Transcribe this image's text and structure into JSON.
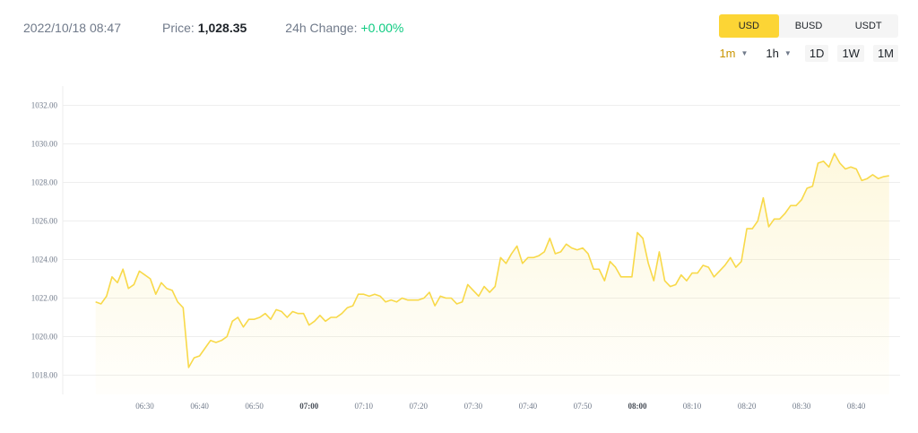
{
  "header": {
    "datetime": "2022/10/18 08:47",
    "price_label": "Price:",
    "price_value": "1,028.35",
    "change_label": "24h Change:",
    "change_value": "+0.00%"
  },
  "currency_options": [
    {
      "label": "USD",
      "active": true
    },
    {
      "label": "BUSD",
      "active": false
    },
    {
      "label": "USDT",
      "active": false
    }
  ],
  "interval_options": [
    {
      "label": "1m",
      "dropdown": true,
      "selected": true
    },
    {
      "label": "1h",
      "dropdown": true,
      "selected": false
    },
    {
      "label": "1D",
      "dropdown": false,
      "selected": false
    },
    {
      "label": "1W",
      "dropdown": false,
      "selected": false
    },
    {
      "label": "1M",
      "dropdown": false,
      "selected": false
    }
  ],
  "colors": {
    "accent": "#fcd535",
    "line": "#f8d949",
    "positive": "#0ecb81",
    "grid": "#eeeeee"
  },
  "chart_data": {
    "type": "area",
    "ylim": [
      1017,
      1033
    ],
    "y_ticks": [
      "1018.00",
      "1020.00",
      "1022.00",
      "1024.00",
      "1026.00",
      "1028.00",
      "1030.00",
      "1032.00"
    ],
    "x_ticks": [
      {
        "label": "06:30",
        "minute": 30,
        "bold": false
      },
      {
        "label": "06:40",
        "minute": 40,
        "bold": false
      },
      {
        "label": "06:50",
        "minute": 50,
        "bold": false
      },
      {
        "label": "07:00",
        "minute": 60,
        "bold": true
      },
      {
        "label": "07:10",
        "minute": 70,
        "bold": false
      },
      {
        "label": "07:20",
        "minute": 80,
        "bold": false
      },
      {
        "label": "07:30",
        "minute": 90,
        "bold": false
      },
      {
        "label": "07:40",
        "minute": 100,
        "bold": false
      },
      {
        "label": "07:50",
        "minute": 110,
        "bold": false
      },
      {
        "label": "08:00",
        "minute": 120,
        "bold": true
      },
      {
        "label": "08:10",
        "minute": 130,
        "bold": false
      },
      {
        "label": "08:20",
        "minute": 140,
        "bold": false
      },
      {
        "label": "08:30",
        "minute": 150,
        "bold": false
      },
      {
        "label": "08:40",
        "minute": 160,
        "bold": false
      }
    ],
    "x_start_minute": 21,
    "x_step_minutes": 1,
    "values": [
      1021.8,
      1021.7,
      1022.1,
      1023.1,
      1022.8,
      1023.5,
      1022.5,
      1022.7,
      1023.4,
      1023.2,
      1023.0,
      1022.2,
      1022.8,
      1022.5,
      1022.4,
      1021.8,
      1021.5,
      1018.4,
      1018.9,
      1019.0,
      1019.4,
      1019.8,
      1019.7,
      1019.8,
      1020.0,
      1020.8,
      1021.0,
      1020.5,
      1020.9,
      1020.9,
      1021.0,
      1021.2,
      1020.9,
      1021.4,
      1021.3,
      1021.0,
      1021.3,
      1021.2,
      1021.2,
      1020.6,
      1020.8,
      1021.1,
      1020.8,
      1021.0,
      1021.0,
      1021.2,
      1021.5,
      1021.6,
      1022.2,
      1022.2,
      1022.1,
      1022.2,
      1022.1,
      1021.8,
      1021.9,
      1021.8,
      1022.0,
      1021.9,
      1021.9,
      1021.9,
      1022.0,
      1022.3,
      1021.6,
      1022.1,
      1022.0,
      1022.0,
      1021.7,
      1021.8,
      1022.7,
      1022.4,
      1022.1,
      1022.6,
      1022.3,
      1022.6,
      1024.1,
      1023.8,
      1024.3,
      1024.7,
      1023.8,
      1024.1,
      1024.1,
      1024.2,
      1024.4,
      1025.1,
      1024.3,
      1024.4,
      1024.8,
      1024.6,
      1024.5,
      1024.6,
      1024.3,
      1023.5,
      1023.5,
      1022.9,
      1023.9,
      1023.6,
      1023.1,
      1023.1,
      1023.1,
      1025.4,
      1025.1,
      1023.8,
      1022.9,
      1024.4,
      1022.9,
      1022.6,
      1022.7,
      1023.2,
      1022.9,
      1023.3,
      1023.3,
      1023.7,
      1023.6,
      1023.1,
      1023.4,
      1023.7,
      1024.1,
      1023.6,
      1023.9,
      1025.6,
      1025.6,
      1026.0,
      1027.2,
      1025.7,
      1026.1,
      1026.1,
      1026.4,
      1026.8,
      1026.8,
      1027.1,
      1027.7,
      1027.8,
      1029.0,
      1029.1,
      1028.8,
      1029.5,
      1029.0,
      1028.7,
      1028.8,
      1028.7,
      1028.1,
      1028.2,
      1028.4,
      1028.2,
      1028.3,
      1028.35
    ]
  }
}
